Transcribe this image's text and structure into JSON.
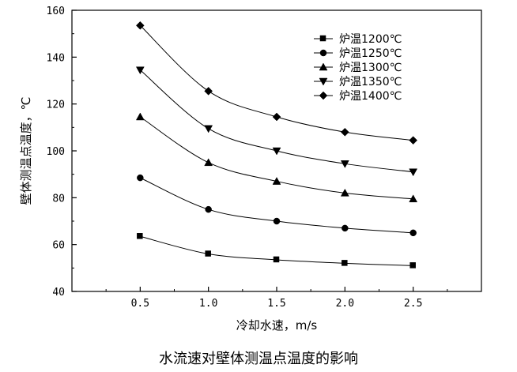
{
  "caption": "水流速对壁体测温点温度的影响",
  "chart_data": {
    "type": "line",
    "title": "",
    "xlabel": "冷却水速，m/s",
    "ylabel": "壁体测温点温度，℃",
    "xlim": [
      0.0,
      3.0
    ],
    "ylim": [
      40,
      160
    ],
    "xticks": [
      0.5,
      1.0,
      1.5,
      2.0,
      2.5
    ],
    "yticks": [
      40,
      60,
      80,
      100,
      120,
      140,
      160
    ],
    "grid": false,
    "legend_position": "top-right",
    "x": [
      0.5,
      1.0,
      1.5,
      2.0,
      2.5
    ],
    "series": [
      {
        "name": "炉温1200℃",
        "marker": "square",
        "values": [
          63.5,
          56.0,
          53.5,
          52.0,
          51.0
        ]
      },
      {
        "name": "炉温1250℃",
        "marker": "circle",
        "values": [
          88.5,
          75.0,
          70.0,
          67.0,
          65.0
        ]
      },
      {
        "name": "炉温1300℃",
        "marker": "triangle-up",
        "values": [
          114.5,
          95.0,
          87.0,
          82.0,
          79.5
        ]
      },
      {
        "name": "炉温1350℃",
        "marker": "triangle-down",
        "values": [
          134.5,
          109.5,
          100.0,
          94.5,
          91.0
        ]
      },
      {
        "name": "炉温1400℃",
        "marker": "diamond",
        "values": [
          153.5,
          125.5,
          114.5,
          108.0,
          104.5
        ]
      }
    ]
  }
}
